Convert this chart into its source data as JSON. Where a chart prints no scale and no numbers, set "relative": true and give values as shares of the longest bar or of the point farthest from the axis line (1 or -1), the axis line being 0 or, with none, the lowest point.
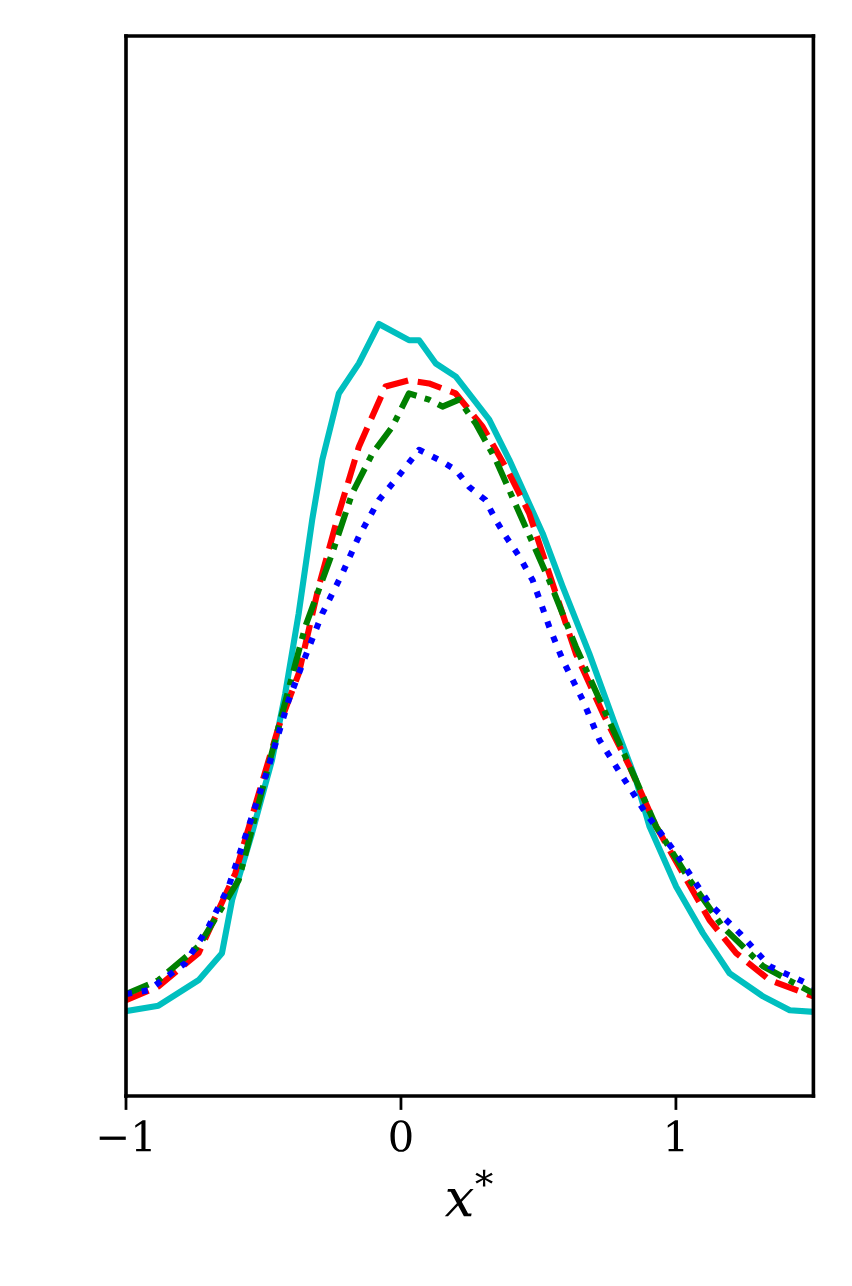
{
  "chart_data": {
    "type": "line",
    "xlabel": "x$^{*}$",
    "relative": true,
    "tick_labels": "x",
    "grid": false,
    "xlim": [
      -1,
      1.5
    ],
    "xticks": [
      {
        "value": -1,
        "label": "−1"
      },
      0,
      1
    ],
    "series": [
      {
        "color": "#00bfbf",
        "line_style": "solid",
        "x": [
          -1.0,
          -0.882,
          -0.736,
          -0.651,
          -0.614,
          -0.542,
          -0.469,
          -0.421,
          -0.372,
          -0.323,
          -0.286,
          -0.226,
          -0.153,
          -0.08,
          0.029,
          0.066,
          0.126,
          0.199,
          0.321,
          0.394,
          0.515,
          0.588,
          0.685,
          0.782,
          0.855,
          0.904,
          1.001,
          1.098,
          1.195,
          1.317,
          1.414,
          1.5
        ],
        "values": [
          0.11,
          0.117,
          0.15,
          0.185,
          0.254,
          0.34,
          0.435,
          0.521,
          0.625,
          0.746,
          0.824,
          0.91,
          0.949,
          1.0,
          0.979,
          0.979,
          0.949,
          0.932,
          0.876,
          0.824,
          0.729,
          0.66,
          0.573,
          0.478,
          0.409,
          0.349,
          0.271,
          0.211,
          0.159,
          0.129,
          0.111,
          0.109
        ]
      },
      {
        "color": "#ff0000",
        "line_style": "dashed",
        "x": [
          -1.0,
          -0.882,
          -0.736,
          -0.603,
          -0.517,
          -0.445,
          -0.372,
          -0.299,
          -0.226,
          -0.153,
          -0.056,
          0.029,
          0.102,
          0.199,
          0.297,
          0.394,
          0.466,
          0.539,
          0.636,
          0.734,
          0.831,
          0.928,
          1.026,
          1.122,
          1.219,
          1.341,
          1.5
        ],
        "values": [
          0.124,
          0.142,
          0.185,
          0.288,
          0.392,
          0.478,
          0.547,
          0.66,
          0.755,
          0.841,
          0.919,
          0.927,
          0.923,
          0.91,
          0.867,
          0.806,
          0.755,
          0.677,
          0.573,
          0.496,
          0.427,
          0.349,
          0.288,
          0.228,
          0.185,
          0.15,
          0.129
        ]
      },
      {
        "color": "#008000",
        "line_style": "dashdot",
        "x": [
          -1.0,
          -0.882,
          -0.736,
          -0.59,
          -0.445,
          -0.348,
          -0.25,
          -0.177,
          -0.104,
          -0.031,
          0.029,
          0.102,
          0.151,
          0.211,
          0.272,
          0.345,
          0.442,
          0.539,
          0.636,
          0.734,
          0.855,
          0.928,
          1.05,
          1.171,
          1.317,
          1.5
        ],
        "values": [
          0.132,
          0.15,
          0.194,
          0.28,
          0.478,
          0.608,
          0.703,
          0.781,
          0.832,
          0.867,
          0.91,
          0.902,
          0.893,
          0.902,
          0.871,
          0.824,
          0.746,
          0.668,
          0.582,
          0.504,
          0.409,
          0.349,
          0.28,
          0.219,
          0.168,
          0.133
        ]
      },
      {
        "color": "#0000ff",
        "line_style": "dotted",
        "x": [
          -1.0,
          -0.918,
          -0.785,
          -0.7,
          -0.627,
          -0.554,
          -0.481,
          -0.408,
          -0.348,
          -0.286,
          -0.213,
          -0.153,
          -0.08,
          -0.02,
          0.066,
          0.138,
          0.199,
          0.248,
          0.307,
          0.345,
          0.381,
          0.43,
          0.479,
          0.539,
          0.588,
          0.661,
          0.722,
          0.782,
          0.891,
          1.001,
          1.122,
          1.232,
          1.341,
          1.5
        ],
        "values": [
          0.132,
          0.137,
          0.172,
          0.219,
          0.271,
          0.349,
          0.427,
          0.513,
          0.569,
          0.625,
          0.677,
          0.725,
          0.772,
          0.798,
          0.837,
          0.824,
          0.811,
          0.789,
          0.772,
          0.746,
          0.725,
          0.699,
          0.668,
          0.608,
          0.565,
          0.513,
          0.461,
          0.427,
          0.366,
          0.314,
          0.249,
          0.211,
          0.168,
          0.142
        ]
      }
    ]
  }
}
